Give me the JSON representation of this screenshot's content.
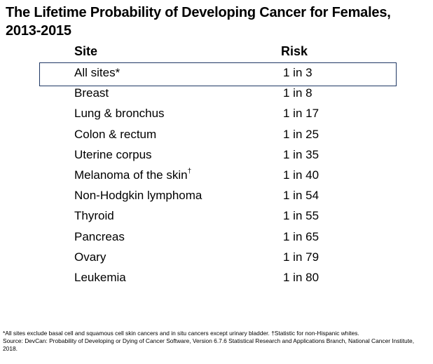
{
  "title": "The Lifetime Probability of Developing Cancer for Females, 2013-2015",
  "table": {
    "headers": {
      "site": "Site",
      "risk": "Risk"
    },
    "rows": [
      {
        "site": "All sites*",
        "sup": "",
        "risk": "1 in 3",
        "highlighted": true
      },
      {
        "site": "Breast",
        "sup": "",
        "risk": "1 in 8",
        "highlighted": false
      },
      {
        "site": "Lung & bronchus",
        "sup": "",
        "risk": "1 in 17",
        "highlighted": false
      },
      {
        "site": "Colon & rectum",
        "sup": "",
        "risk": "1 in 25",
        "highlighted": false
      },
      {
        "site": "Uterine corpus",
        "sup": "",
        "risk": "1 in 35",
        "highlighted": false
      },
      {
        "site": "Melanoma of the skin",
        "sup": "†",
        "risk": "1 in 40",
        "highlighted": false
      },
      {
        "site": "Non-Hodgkin lymphoma",
        "sup": "",
        "risk": "1 in 54",
        "highlighted": false
      },
      {
        "site": "Thyroid",
        "sup": "",
        "risk": "1 in 55",
        "highlighted": false
      },
      {
        "site": "Pancreas",
        "sup": "",
        "risk": "1 in 65",
        "highlighted": false
      },
      {
        "site": "Ovary",
        "sup": "",
        "risk": "1 in 79",
        "highlighted": false
      },
      {
        "site": "Leukemia",
        "sup": "",
        "risk": "1 in 80",
        "highlighted": false
      }
    ]
  },
  "footnote": {
    "line1": "*All sites exclude basal cell and squamous cell skin cancers and in situ cancers except urinary bladder. †Statistic for non-Hispanic whites.",
    "line2": "Source: DevCan: Probability of Developing or Dying of Cancer Software, Version 6.7.6 Statistical Research and Applications Branch, National Cancer Institute, 2018."
  },
  "colors": {
    "highlight_border": "#1f3864",
    "text": "#000000",
    "background": "#ffffff"
  }
}
